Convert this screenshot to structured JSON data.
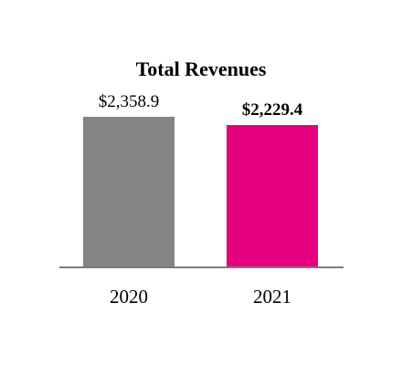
{
  "chart_data": {
    "type": "bar",
    "title": "Total Revenues",
    "xlabel": "",
    "ylabel": "",
    "categories": [
      "2020",
      "2021"
    ],
    "values": [
      2358.9,
      2229.4
    ],
    "data_labels": [
      "$2,358.9",
      "$2,229.4"
    ],
    "bold_labels": [
      false,
      true
    ],
    "colors": [
      "#848484",
      "#e4007f"
    ],
    "baseline_color": "#7a7a7a",
    "ylim": [
      0,
      2358.9
    ],
    "grid": false,
    "legend": "none"
  }
}
